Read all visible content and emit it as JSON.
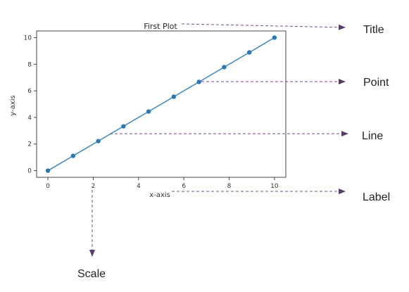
{
  "chart_data": {
    "type": "line",
    "title": "First Plot",
    "xlabel": "x-axis",
    "ylabel": "y-axis",
    "x": [
      0,
      1.111,
      2.222,
      3.333,
      4.444,
      5.556,
      6.667,
      7.778,
      8.889,
      10
    ],
    "series": [
      {
        "values": [
          0,
          1.111,
          2.222,
          3.333,
          4.444,
          5.556,
          6.667,
          7.778,
          8.889,
          10
        ]
      }
    ],
    "xlim": [
      -0.5,
      10.5
    ],
    "ylim": [
      -0.5,
      10.5
    ],
    "xticks": [
      "0",
      "2",
      "4",
      "6",
      "8",
      "10"
    ],
    "yticks": [
      "0",
      "2",
      "4",
      "6",
      "8",
      "10"
    ],
    "grid": false,
    "line_color": "#3a86bf",
    "marker_color": "#2e78b2"
  },
  "annotations": {
    "title_label": "Title",
    "point_label": "Point",
    "line_label": "Line",
    "axis_label_label": "Label",
    "scale_label": "Scale",
    "arrow_color": "#7a4a8c"
  }
}
